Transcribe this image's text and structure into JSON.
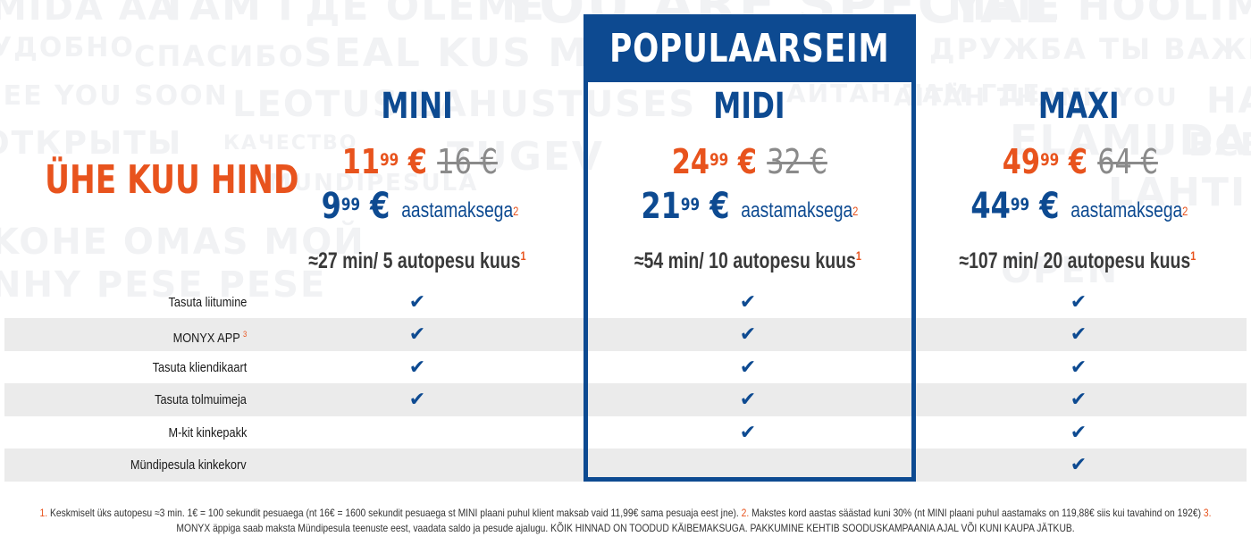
{
  "watermark_words": [
    "MIDA ÄA",
    "ТАМ ГДЕ OLEME",
    "YOU ARE SPECIAL",
    "MEIE HOOLIME",
    "УДОБНО",
    "СПАСИБО",
    "SEAL KUS MEIE",
    "ДРУЖБА ТЫ ВАЖЕН",
    "SEE YOU SOON",
    "LEOTUS LAHUSTUSES",
    "АЙТАН ТАМ ГДЕ",
    "AITÄH THANK YOU",
    "HAR",
    "ОТКРЫТЫ",
    "КАЧЕСТВО",
    "TUGEV",
    "ELAMUDA",
    "ВСЕ",
    "KOHE OMAS MOЙ",
    "OPEN",
    "MUNDIPESULA",
    "NHY PESE PESE",
    "LAHTI"
  ],
  "popular": {
    "label": "POPULAARSEIM"
  },
  "main_label": "ÜHE KUU HIND",
  "plans": [
    {
      "name": "MINI",
      "monthly_int": "11",
      "monthly_dec": "99",
      "currency": "€",
      "old_price": "16 €",
      "annual_int": "9",
      "annual_dec": "99",
      "annual_label": "aastamaksega",
      "annual_sup": "2",
      "usage": "≈27 min/ 5 autopesu kuus",
      "usage_sup": "1"
    },
    {
      "name": "MIDI",
      "monthly_int": "24",
      "monthly_dec": "99",
      "currency": "€",
      "old_price": "32 €",
      "annual_int": "21",
      "annual_dec": "99",
      "annual_label": "aastamaksega",
      "annual_sup": "2",
      "usage": "≈54 min/ 10 autopesu kuus",
      "usage_sup": "1"
    },
    {
      "name": "MAXI",
      "monthly_int": "49",
      "monthly_dec": "99",
      "currency": "€",
      "old_price": "64 €",
      "annual_int": "44",
      "annual_dec": "99",
      "annual_label": "aastamaksega",
      "annual_sup": "2",
      "usage": "≈107 min/ 20 autopesu kuus",
      "usage_sup": "1"
    }
  ],
  "features": [
    {
      "label": "Tasuta liitumine",
      "sup": "",
      "included": [
        true,
        true,
        true
      ]
    },
    {
      "label": "MONYX APP",
      "sup": "3",
      "included": [
        true,
        true,
        true
      ]
    },
    {
      "label": "Tasuta kliendikaart",
      "sup": "",
      "included": [
        true,
        true,
        true
      ]
    },
    {
      "label": "Tasuta tolmuimeja",
      "sup": "",
      "included": [
        true,
        true,
        true
      ]
    },
    {
      "label": "M-kit kinkepakk",
      "sup": "",
      "included": [
        false,
        true,
        true
      ]
    },
    {
      "label": "Mündipesula kinkekorv",
      "sup": "",
      "included": [
        false,
        false,
        true
      ]
    }
  ],
  "check_glyph": "✔",
  "colors": {
    "brand_blue": "#0d4a91",
    "accent_orange": "#e8531d",
    "stripe_gray": "#ebebeb"
  },
  "footnotes": {
    "n1": "1.",
    "t1": "Keskmiselt üks autopesu ≈3 min. 1€ = 100 sekundit pesuaega (nt 16€ = 1600 sekundit pesuaega st MINI plaani puhul klient maksab vaid 11,99€ sama pesuaja eest jne).",
    "n2": "2.",
    "t2": "Makstes kord aastas säästad kuni 30% (nt MINI plaani puhul aastamaks on 119,88€ siis kui tavahind on 192€)",
    "n3": "3.",
    "t3": "MONYX äppiga saab maksta Mündipesula teenuste eest, vaadata saldo ja pesude ajalugu.",
    "t4": "KÕIK HINNAD ON TOODUD KÄIBEMAKSUGA. PAKKUMINE KEHTIB SOODUSKAMPAANIA AJAL VÕI KUNI KAUPA JÄTKUB."
  }
}
